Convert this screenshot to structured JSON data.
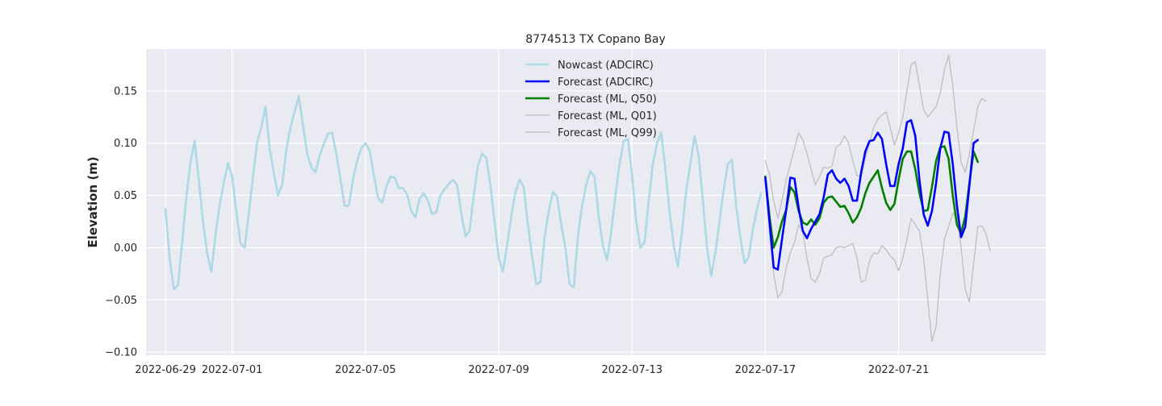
{
  "chart_data": {
    "type": "line",
    "title": "8774513 TX Copano Bay",
    "xlabel": "",
    "ylabel": "Elevation (m)",
    "xlim": [
      "2022-06-28T10:00",
      "2022-07-25T10:00"
    ],
    "ylim": [
      -0.103,
      0.19
    ],
    "x_ticks": [
      "2022-06-29",
      "2022-07-01",
      "2022-07-05",
      "2022-07-09",
      "2022-07-13",
      "2022-07-17",
      "2022-07-21"
    ],
    "y_ticks": [
      -0.1,
      -0.05,
      0.0,
      0.05,
      0.1,
      0.15
    ],
    "y_tick_labels": [
      "−0.10",
      "−0.05",
      "0.00",
      "0.05",
      "0.10",
      "0.15"
    ],
    "grid": true,
    "legend_position": "top-center",
    "background": "#eaeaf2",
    "series": [
      {
        "name": "Nowcast (ADCIRC)",
        "color": "#add8e6",
        "start": "2022-06-29T00:00",
        "step_hours": 3,
        "values": [
          0.037,
          -0.01,
          -0.04,
          -0.036,
          0.005,
          0.048,
          0.082,
          0.102,
          0.065,
          0.025,
          -0.005,
          -0.023,
          0.012,
          0.041,
          0.062,
          0.081,
          0.068,
          0.035,
          0.004,
          0.0,
          0.032,
          0.068,
          0.101,
          0.115,
          0.135,
          0.095,
          0.072,
          0.05,
          0.06,
          0.093,
          0.115,
          0.13,
          0.145,
          0.118,
          0.09,
          0.077,
          0.072,
          0.088,
          0.099,
          0.109,
          0.11,
          0.09,
          0.066,
          0.04,
          0.04,
          0.065,
          0.083,
          0.095,
          0.1,
          0.093,
          0.07,
          0.048,
          0.043,
          0.058,
          0.068,
          0.067,
          0.057,
          0.057,
          0.051,
          0.035,
          0.029,
          0.047,
          0.052,
          0.045,
          0.032,
          0.034,
          0.05,
          0.056,
          0.061,
          0.065,
          0.06,
          0.033,
          0.011,
          0.016,
          0.05,
          0.078,
          0.09,
          0.086,
          0.06,
          0.025,
          -0.01,
          -0.023,
          0.002,
          0.03,
          0.053,
          0.065,
          0.058,
          0.022,
          -0.008,
          -0.035,
          -0.033,
          0.01,
          0.035,
          0.053,
          0.049,
          0.022,
          0.0,
          -0.035,
          -0.038,
          0.01,
          0.04,
          0.06,
          0.073,
          0.068,
          0.03,
          0.002,
          -0.012,
          0.015,
          0.05,
          0.08,
          0.102,
          0.104,
          0.07,
          0.025,
          0.0,
          0.005,
          0.045,
          0.08,
          0.1,
          0.11,
          0.075,
          0.035,
          0.002,
          -0.018,
          0.015,
          0.055,
          0.08,
          0.107,
          0.088,
          0.045,
          0.0,
          -0.027,
          -0.005,
          0.025,
          0.055,
          0.08,
          0.084,
          0.04,
          0.01,
          -0.015,
          -0.009,
          0.017,
          0.037,
          0.052
        ]
      },
      {
        "name": "Forecast (ADCIRC)",
        "color": "#0000ff",
        "start": "2022-07-17T00:00",
        "step_hours": 3,
        "values": [
          0.067,
          0.025,
          -0.019,
          -0.021,
          0.008,
          0.036,
          0.067,
          0.066,
          0.038,
          0.016,
          0.009,
          0.018,
          0.025,
          0.032,
          0.048,
          0.07,
          0.074,
          0.066,
          0.062,
          0.066,
          0.059,
          0.045,
          0.045,
          0.072,
          0.092,
          0.102,
          0.103,
          0.11,
          0.104,
          0.08,
          0.059,
          0.059,
          0.08,
          0.095,
          0.12,
          0.122,
          0.107,
          0.065,
          0.032,
          0.021,
          0.035,
          0.062,
          0.095,
          0.111,
          0.11,
          0.08,
          0.04,
          0.01,
          0.02,
          0.06,
          0.1,
          0.103
        ]
      },
      {
        "name": "Forecast (ML, Q50)",
        "color": "#008000",
        "start": "2022-07-17T00:00",
        "step_hours": 3,
        "values": [
          0.068,
          0.03,
          0.0,
          0.01,
          0.025,
          0.036,
          0.058,
          0.053,
          0.035,
          0.024,
          0.022,
          0.027,
          0.022,
          0.028,
          0.043,
          0.048,
          0.049,
          0.044,
          0.039,
          0.04,
          0.033,
          0.024,
          0.029,
          0.038,
          0.052,
          0.062,
          0.068,
          0.074,
          0.057,
          0.043,
          0.036,
          0.042,
          0.065,
          0.085,
          0.092,
          0.092,
          0.075,
          0.052,
          0.035,
          0.036,
          0.058,
          0.083,
          0.096,
          0.097,
          0.085,
          0.05,
          0.022,
          0.014,
          0.03,
          0.062,
          0.092,
          0.082
        ]
      },
      {
        "name": "Forecast (ML, Q01)",
        "color": "#bebebe",
        "start": "2022-07-17T00:00",
        "step_hours": 3,
        "values": [
          0.066,
          0.015,
          -0.025,
          -0.048,
          -0.042,
          -0.02,
          -0.005,
          0.005,
          0.022,
          0.015,
          -0.01,
          -0.03,
          -0.033,
          -0.025,
          -0.01,
          -0.008,
          -0.007,
          0.0,
          0.001,
          0.0,
          0.002,
          0.004,
          -0.01,
          -0.033,
          -0.031,
          -0.013,
          -0.005,
          -0.006,
          0.002,
          -0.002,
          -0.008,
          -0.012,
          -0.022,
          -0.01,
          0.008,
          0.028,
          0.022,
          0.016,
          -0.01,
          -0.05,
          -0.09,
          -0.075,
          -0.025,
          0.008,
          0.02,
          0.033,
          0.028,
          0.0,
          -0.04,
          -0.052,
          -0.015,
          0.02,
          0.021,
          0.013,
          -0.003
        ]
      },
      {
        "name": "Forecast (ML, Q99)",
        "color": "#bebebe",
        "start": "2022-07-17T00:00",
        "step_hours": 3,
        "values": [
          0.083,
          0.07,
          0.045,
          0.028,
          0.045,
          0.065,
          0.08,
          0.095,
          0.11,
          0.103,
          0.09,
          0.075,
          0.06,
          0.068,
          0.077,
          0.076,
          0.078,
          0.096,
          0.099,
          0.107,
          0.1,
          0.083,
          0.069,
          0.068,
          0.085,
          0.1,
          0.115,
          0.123,
          0.127,
          0.13,
          0.115,
          0.098,
          0.11,
          0.125,
          0.15,
          0.175,
          0.178,
          0.155,
          0.132,
          0.125,
          0.13,
          0.135,
          0.148,
          0.17,
          0.184,
          0.155,
          0.115,
          0.082,
          0.072,
          0.09,
          0.112,
          0.135,
          0.143,
          0.14
        ]
      }
    ]
  }
}
